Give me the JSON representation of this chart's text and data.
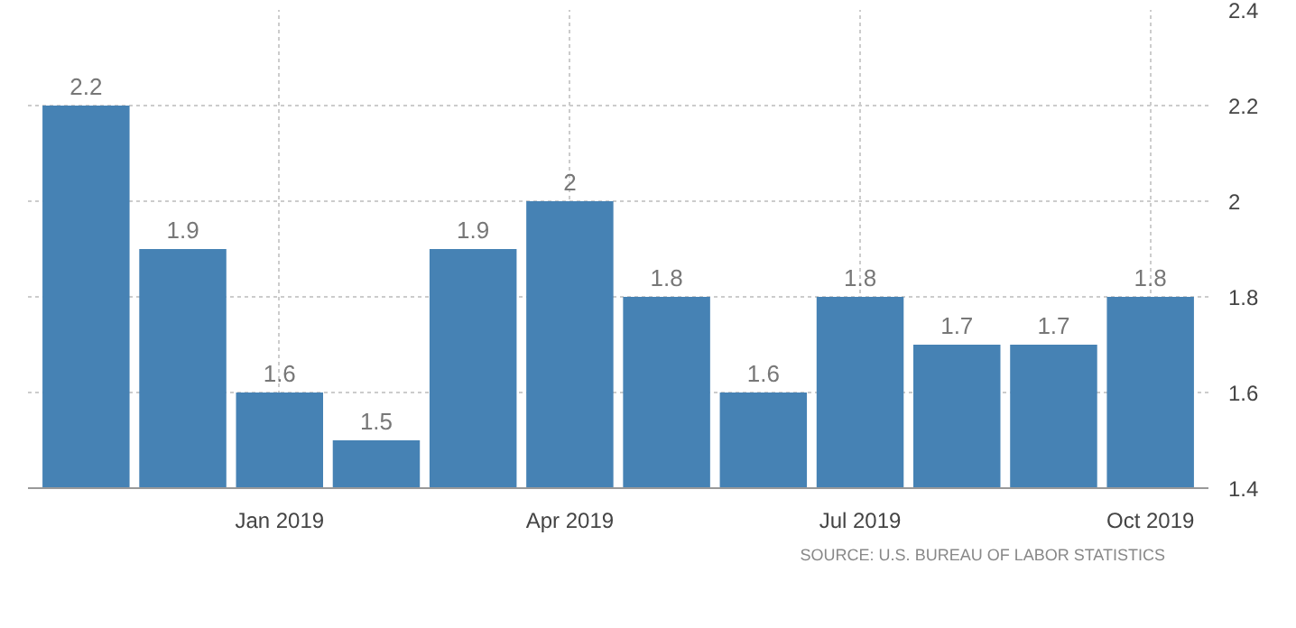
{
  "chart_data": {
    "type": "bar",
    "categories": [
      null,
      null,
      "Jan 2019",
      null,
      null,
      "Apr 2019",
      null,
      null,
      "Jul 2019",
      null,
      null,
      "Oct 2019"
    ],
    "values": [
      2.2,
      1.9,
      1.6,
      1.5,
      1.9,
      2,
      1.8,
      1.6,
      1.8,
      1.7,
      1.7,
      1.8
    ],
    "color": "#4682b4",
    "ylim": [
      1.4,
      2.4
    ],
    "yticks": [
      1.4,
      1.6,
      1.8,
      2,
      2.2,
      2.4
    ],
    "grid": true,
    "data_labels": true,
    "annotations": [
      "SOURCE: U.S. BUREAU OF LABOR STATISTICS"
    ]
  }
}
